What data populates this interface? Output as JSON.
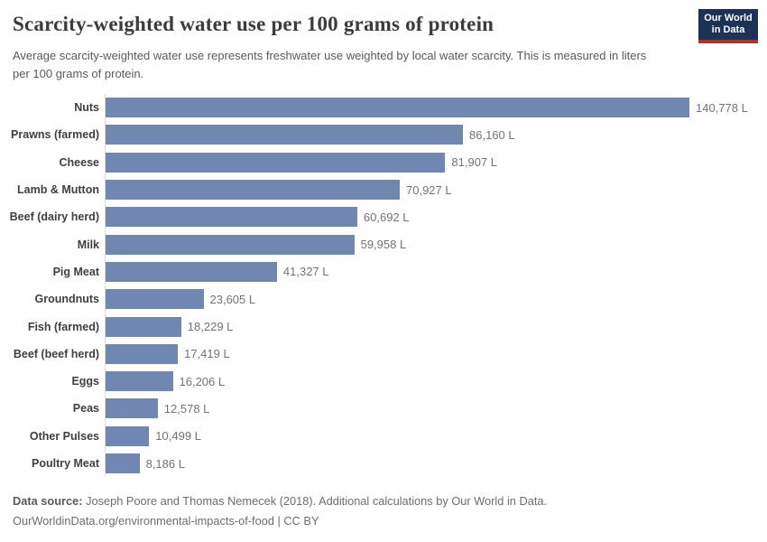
{
  "header": {
    "title": "Scarcity-weighted water use per 100 grams of protein",
    "subtitle": "Average scarcity-weighted water use represents freshwater use weighted by local water scarcity. This is measured in liters per 100 grams of protein.",
    "logo": {
      "line1": "Our World",
      "line2": "in Data",
      "bg_color": "#1d3356",
      "accent_color": "#a8352f"
    }
  },
  "chart_data": {
    "type": "bar",
    "orientation": "horizontal",
    "title": "Scarcity-weighted water use per 100 grams of protein",
    "categories": [
      "Nuts",
      "Prawns (farmed)",
      "Cheese",
      "Lamb & Mutton",
      "Beef (dairy herd)",
      "Milk",
      "Pig Meat",
      "Groundnuts",
      "Fish (farmed)",
      "Beef (beef herd)",
      "Eggs",
      "Peas",
      "Other Pulses",
      "Poultry Meat"
    ],
    "values": [
      140778,
      86160,
      81907,
      70927,
      60692,
      59958,
      41327,
      23605,
      18229,
      17419,
      16206,
      12578,
      10499,
      8186
    ],
    "value_labels": [
      "140,778 L",
      "86,160 L",
      "81,907 L",
      "70,927 L",
      "60,692 L",
      "59,958 L",
      "41,327 L",
      "23,605 L",
      "18,229 L",
      "17,419 L",
      "16,206 L",
      "12,578 L",
      "10,499 L",
      "8,186 L"
    ],
    "unit": "liters per 100 grams of protein",
    "xlabel": "",
    "ylabel": "",
    "xlim": [
      0,
      140778
    ],
    "grid": false,
    "legend": "none",
    "bar_color": "#6f87b1",
    "axis_line_color": "#dcdcdc"
  },
  "footer": {
    "source_label": "Data source:",
    "source_text": " Joseph Poore and Thomas Nemecek (2018). Additional calculations by Our World in Data.",
    "note": "OurWorldinData.org/environmental-impacts-of-food | CC BY"
  }
}
